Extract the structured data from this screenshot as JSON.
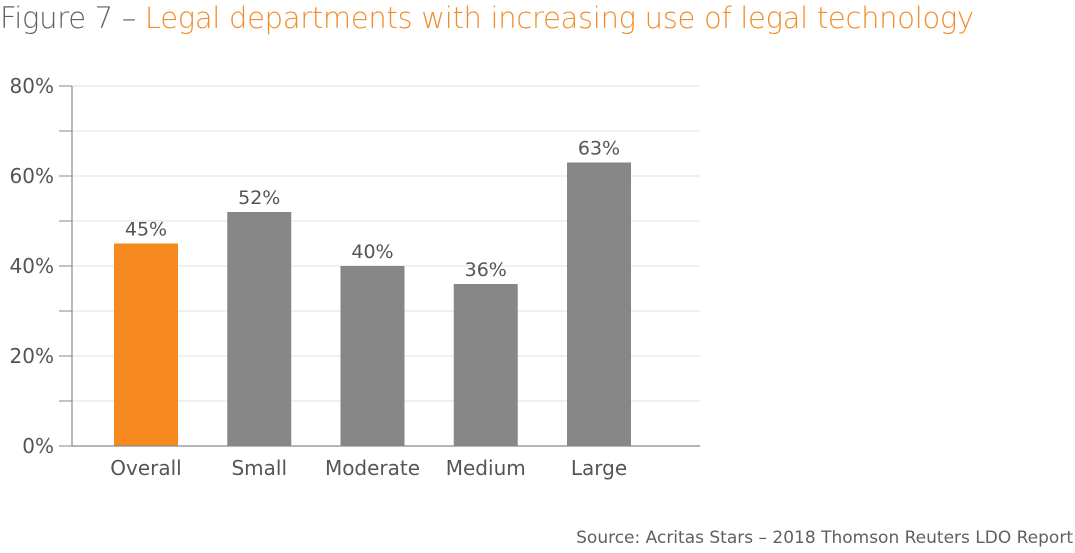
{
  "figure_label": "Figure 7 – ",
  "title": "Legal departments with increasing use of legal technology",
  "source": "Source: Acritas Stars – 2018 Thomson Reuters LDO Report",
  "colors": {
    "highlight": "#f5891f",
    "bar": "#878787",
    "title_accent": "#f28c28"
  },
  "chart_data": {
    "type": "bar",
    "title": "Legal departments with increasing use of legal technology",
    "xlabel": "",
    "ylabel": "",
    "categories": [
      "Overall",
      "Small",
      "Moderate",
      "Medium",
      "Large"
    ],
    "values": [
      45,
      52,
      40,
      36,
      63
    ],
    "value_labels": [
      "45%",
      "52%",
      "40%",
      "36%",
      "63%"
    ],
    "highlight_index": 0,
    "ylim": [
      0,
      80
    ],
    "yticks": [
      0,
      20,
      40,
      60,
      80
    ],
    "ytick_labels": [
      "0%",
      "20%",
      "40%",
      "60%",
      "80%"
    ],
    "minor_grid_step": 10,
    "grid": true,
    "legend": "none"
  }
}
